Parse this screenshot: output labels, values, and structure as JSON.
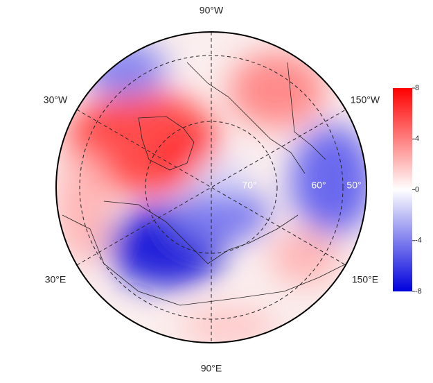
{
  "map": {
    "longitude_labels": {
      "top": "90°W",
      "upper_left": "30°W",
      "upper_right": "150°W",
      "lower_left": "30°E",
      "lower_right": "150°E",
      "bottom": "90°E"
    },
    "latitude_labels": [
      "70°",
      "60°",
      "50°"
    ],
    "colorbar": {
      "lim": [
        -8,
        8
      ],
      "ticks": [
        8,
        4,
        0,
        -4,
        -8
      ],
      "colors": [
        "#0000dd",
        "#ffffff",
        "#ff0000"
      ]
    }
  }
}
